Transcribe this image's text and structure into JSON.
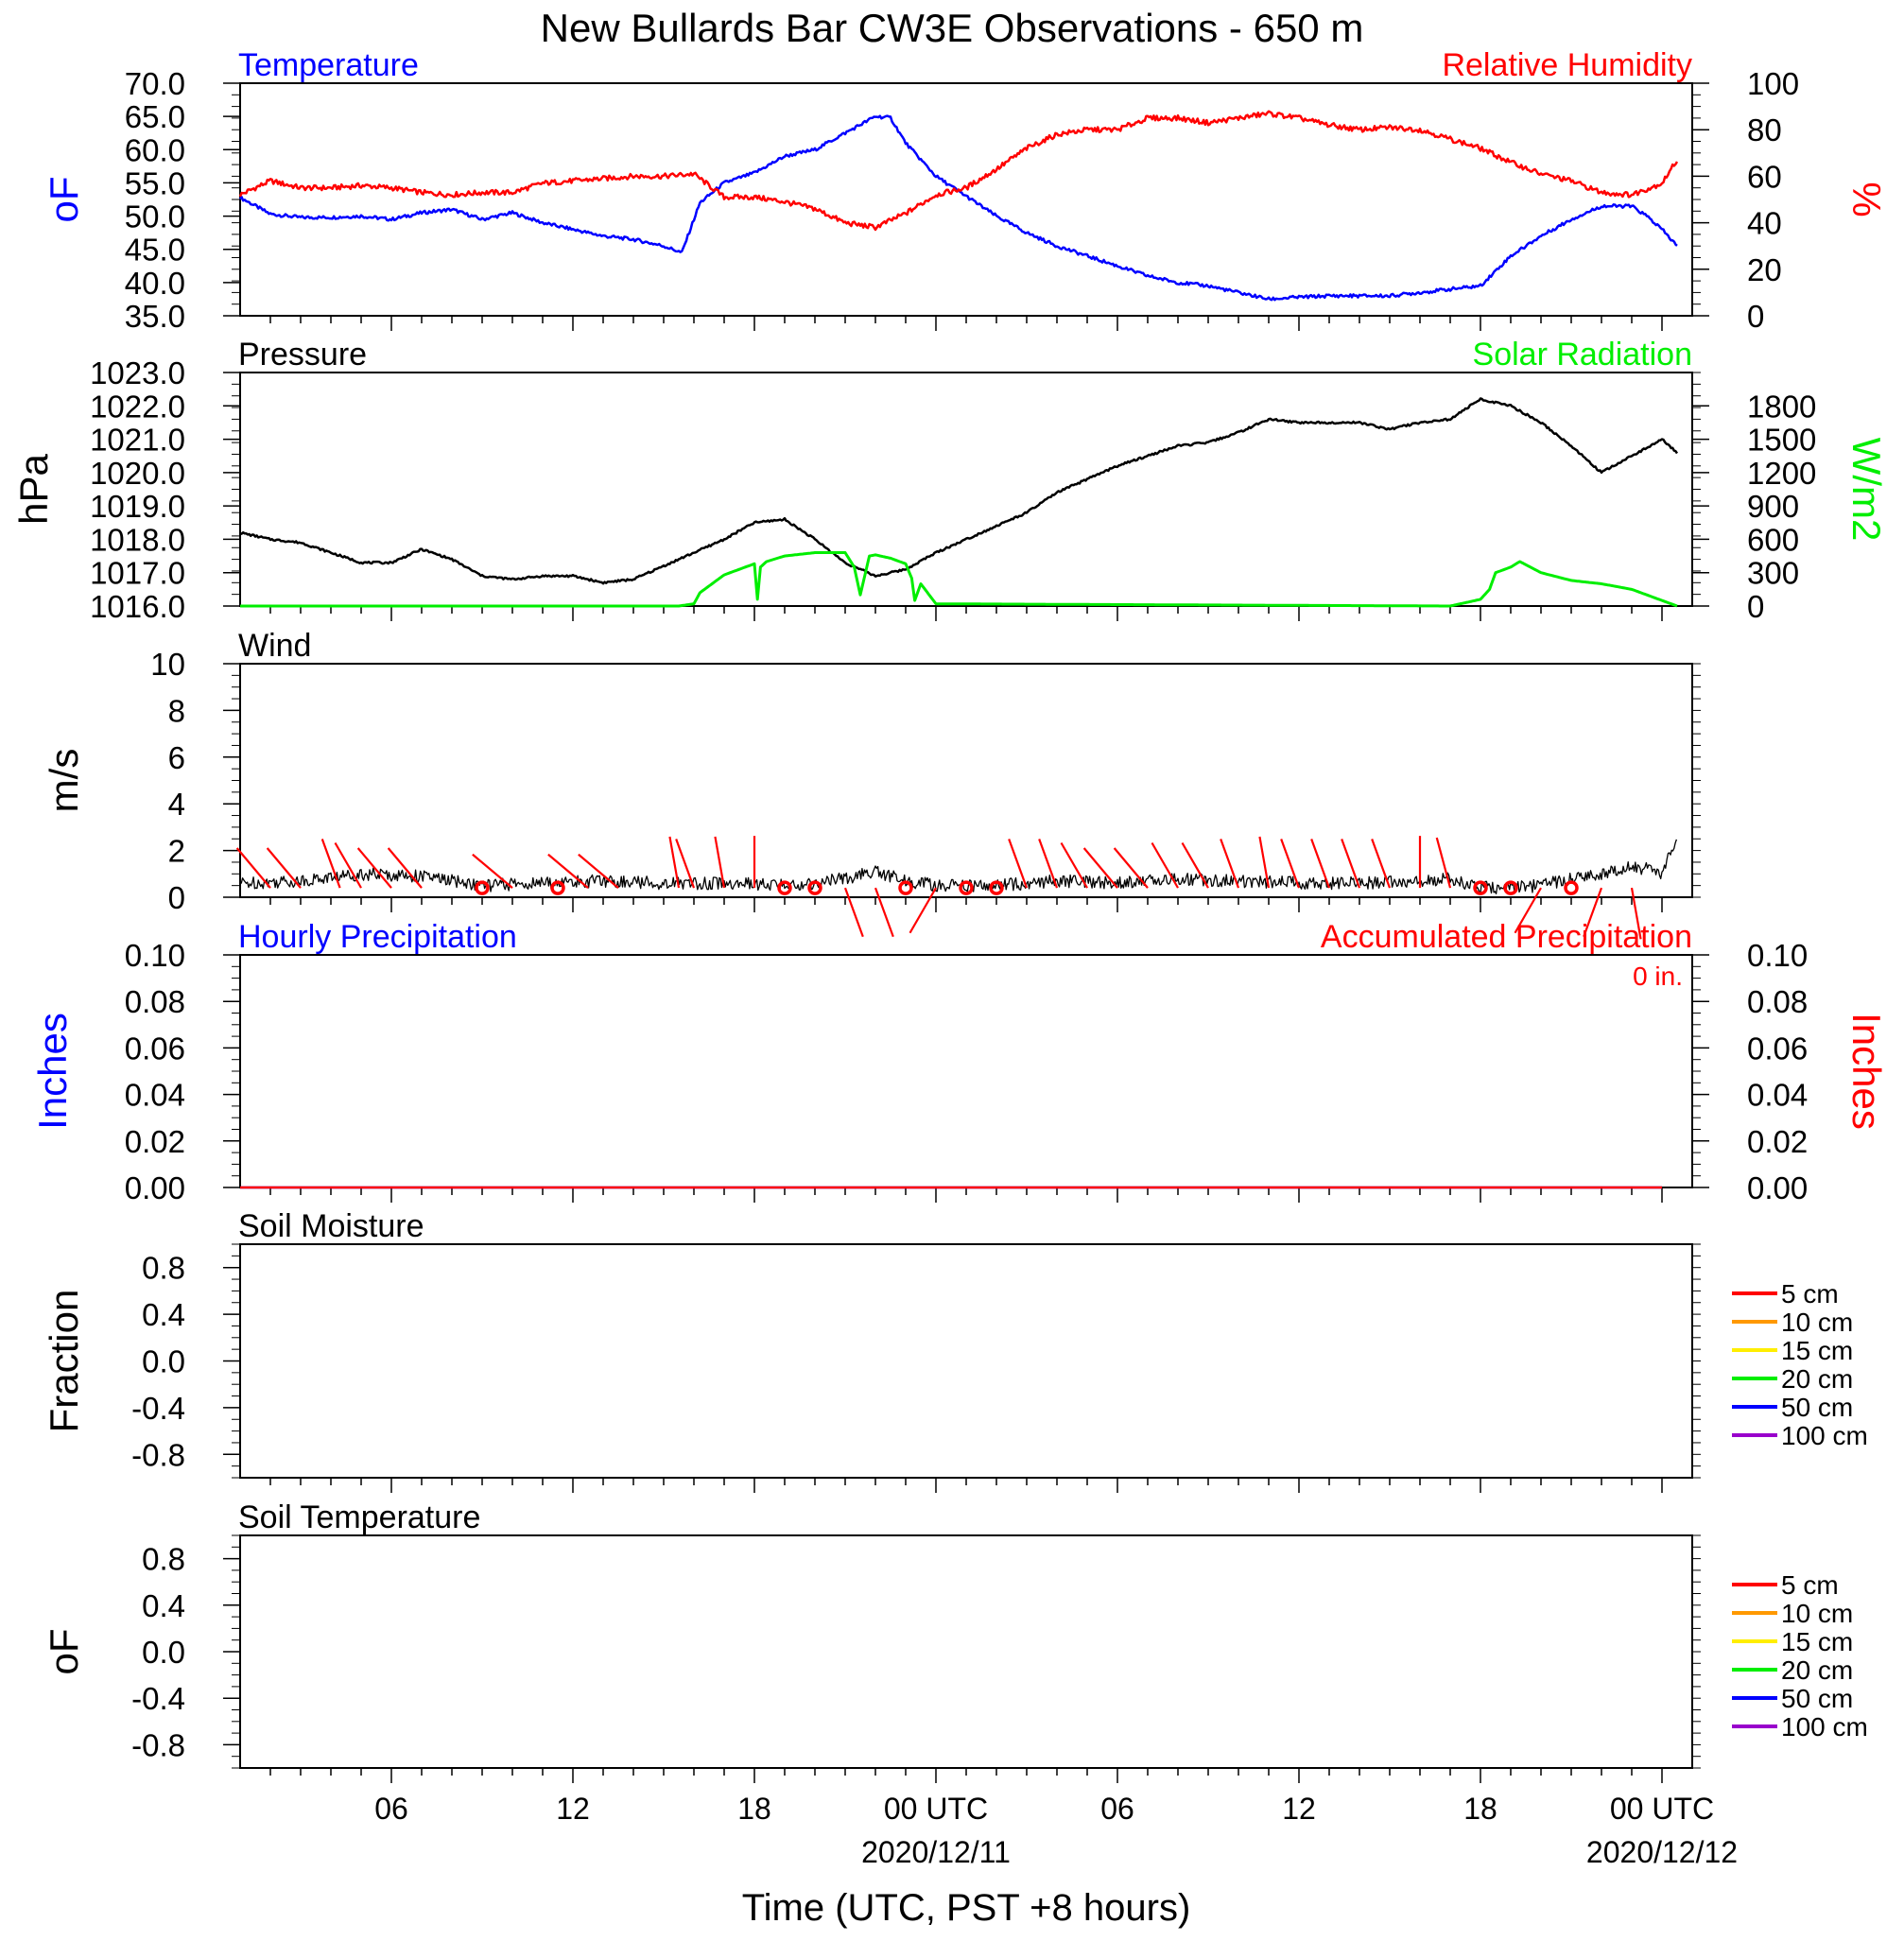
{
  "title": "New Bullards Bar CW3E Observations - 650 m",
  "xlabel": "Time (UTC, PST +8 hours)",
  "time_axis": {
    "ticks": [
      {
        "hour": 6,
        "label": "06",
        "date": ""
      },
      {
        "hour": 12,
        "label": "12",
        "date": ""
      },
      {
        "hour": 18,
        "label": "18",
        "date": ""
      },
      {
        "hour": 24,
        "label": "00 UTC",
        "date": "2020/12/11"
      },
      {
        "hour": 30,
        "label": "06",
        "date": ""
      },
      {
        "hour": 36,
        "label": "12",
        "date": ""
      },
      {
        "hour": 42,
        "label": "18",
        "date": ""
      },
      {
        "hour": 48,
        "label": "00 UTC",
        "date": "2020/12/12"
      }
    ],
    "xlim": [
      1,
      49
    ]
  },
  "colors": {
    "temperature": "#0000ff",
    "humidity": "#ff0000",
    "pressure": "#000000",
    "solar": "#00ee00",
    "wind": "#000000",
    "barbs": "#ff0000",
    "hourly_precip": "#0000ff",
    "accum_precip": "#ff0000"
  },
  "chart_data": [
    {
      "type": "line",
      "title_left": "Temperature",
      "title_right": "Relative Humidity",
      "ylabel_left": "oF",
      "ylabel_right": "%",
      "ylim_left": [
        35,
        70
      ],
      "ylim_right": [
        0,
        100
      ],
      "yticks_left": [
        "35.0",
        "40.0",
        "45.0",
        "50.0",
        "55.0",
        "60.0",
        "65.0",
        "70.0"
      ],
      "yticks_right": [
        "0",
        "20",
        "40",
        "60",
        "80",
        "100"
      ],
      "series": [
        {
          "name": "Temperature",
          "axis": "left",
          "x": [
            1,
            2,
            3,
            4,
            5,
            6,
            7,
            8,
            9,
            10,
            11,
            12,
            13,
            14,
            15,
            15.6,
            16.2,
            17,
            18,
            19,
            20,
            21,
            22,
            22.5,
            23,
            24,
            25,
            26,
            27,
            28,
            29,
            30,
            31,
            32,
            33,
            34,
            35,
            36,
            37,
            38,
            39,
            40,
            41,
            42,
            43,
            44,
            45,
            46,
            47,
            47.5,
            48,
            48.5
          ],
          "y": [
            52.8,
            50.3,
            49.8,
            49.8,
            50,
            49.5,
            50.5,
            51,
            49.5,
            50.5,
            49,
            48,
            47,
            46.5,
            45.5,
            44.5,
            52,
            55,
            56.5,
            59,
            60,
            62.5,
            65,
            64.8,
            61,
            56,
            53,
            50,
            47.5,
            45.5,
            44,
            42.5,
            41,
            40,
            39.5,
            38.5,
            37.5,
            37.8,
            38,
            38,
            38,
            38.5,
            39,
            39.5,
            44,
            47,
            49.5,
            51.5,
            51.5,
            50,
            48,
            45.5
          ]
        },
        {
          "name": "Relative Humidity",
          "axis": "right",
          "x": [
            1,
            2,
            3,
            4,
            5,
            6,
            7,
            8,
            9,
            10,
            11,
            12,
            13,
            14,
            15,
            16,
            17,
            18,
            19,
            20,
            21,
            22,
            23,
            24,
            25,
            26,
            27,
            28,
            29,
            30,
            31,
            32,
            33,
            34,
            35,
            36,
            37,
            38,
            39,
            40,
            41,
            42,
            43,
            44,
            45,
            46,
            47,
            48,
            48.5
          ],
          "y": [
            52,
            58,
            55,
            55,
            56,
            55,
            53,
            52,
            53,
            53,
            57,
            58,
            59,
            60,
            60,
            61,
            51,
            51,
            49,
            46,
            40,
            38,
            44,
            52,
            55,
            63,
            72,
            78,
            80,
            80,
            85,
            85,
            83,
            85,
            87,
            85,
            82,
            80,
            81,
            80,
            76,
            72,
            66,
            61,
            58,
            53,
            52,
            57,
            67
          ]
        }
      ]
    },
    {
      "type": "line",
      "title_left": "Pressure",
      "title_right": "Solar Radiation",
      "ylabel_left": "hPa",
      "ylabel_right": "W/m2",
      "ylim_left": [
        1016,
        1023
      ],
      "ylim_right": [
        0,
        2100
      ],
      "yticks_left": [
        "1016.0",
        "1017.0",
        "1018.0",
        "1019.0",
        "1020.0",
        "1021.0",
        "1022.0",
        "1023.0"
      ],
      "yticks_right": [
        "0",
        "300",
        "600",
        "900",
        "1200",
        "1500",
        "1800"
      ],
      "series": [
        {
          "name": "Pressure",
          "axis": "left",
          "x": [
            1,
            2,
            3,
            4,
            5,
            6,
            7,
            8,
            9,
            10,
            11,
            12,
            13,
            14,
            15,
            16,
            17,
            18,
            19,
            20,
            21,
            22,
            23,
            24,
            25,
            26,
            27,
            28,
            29,
            30,
            31,
            32,
            33,
            34,
            35,
            36,
            37,
            38,
            39,
            40,
            41,
            42,
            43,
            44,
            45,
            46,
            47,
            48,
            48.5
          ],
          "y": [
            1018.2,
            1018,
            1017.9,
            1017.6,
            1017.3,
            1017.3,
            1017.7,
            1017.4,
            1016.9,
            1016.8,
            1016.9,
            1016.9,
            1016.7,
            1016.8,
            1017.2,
            1017.6,
            1018.0,
            1018.5,
            1018.6,
            1018.0,
            1017.3,
            1016.9,
            1017.1,
            1017.6,
            1018.0,
            1018.4,
            1018.8,
            1019.4,
            1019.8,
            1020.2,
            1020.5,
            1020.8,
            1020.9,
            1021.2,
            1021.6,
            1021.5,
            1021.5,
            1021.5,
            1021.3,
            1021.5,
            1021.6,
            1022.2,
            1022.0,
            1021.5,
            1020.8,
            1020.0,
            1020.5,
            1021.0,
            1020.6
          ]
        },
        {
          "name": "Solar Radiation",
          "axis": "right",
          "x": [
            1,
            15.5,
            16,
            16.2,
            17,
            17.8,
            18,
            18.1,
            18.2,
            18.4,
            19,
            20,
            21,
            21.3,
            21.5,
            21.8,
            22,
            22.5,
            23,
            23.2,
            23.3,
            23.5,
            24,
            41,
            42,
            42.3,
            42.5,
            43,
            43.3,
            44,
            45,
            46,
            47,
            48,
            48.5
          ],
          "y": [
            0,
            0,
            20,
            120,
            280,
            360,
            380,
            60,
            350,
            400,
            450,
            480,
            480,
            350,
            100,
            450,
            460,
            430,
            380,
            250,
            50,
            200,
            20,
            0,
            60,
            150,
            300,
            350,
            400,
            300,
            230,
            200,
            150,
            50,
            0
          ]
        }
      ]
    },
    {
      "type": "line",
      "title_left": "Wind",
      "ylabel_left": "m/s",
      "ylim_left": [
        0,
        10
      ],
      "yticks_left": [
        "0",
        "2",
        "4",
        "6",
        "8",
        "10"
      ],
      "series": [
        {
          "name": "Wind",
          "axis": "left",
          "x": [
            1,
            3,
            5,
            7,
            9,
            11,
            13,
            15,
            17,
            19,
            20,
            21,
            22,
            23,
            24,
            26,
            28,
            30,
            32,
            34,
            36,
            38,
            40,
            41,
            42,
            43,
            44,
            45,
            46,
            47,
            47.5,
            48,
            48.5
          ],
          "y": [
            0.6,
            0.7,
            1.0,
            0.9,
            0.5,
            0.6,
            0.7,
            0.6,
            0.6,
            0.5,
            0.6,
            0.8,
            1.1,
            0.7,
            0.5,
            0.5,
            0.7,
            0.6,
            0.8,
            0.7,
            0.6,
            0.6,
            0.7,
            0.8,
            0.4,
            0.4,
            0.5,
            0.8,
            1.0,
            1.3,
            1.2,
            1.0,
            2.5
          ]
        }
      ],
      "barbs": {
        "x": [
          2,
          3,
          4.3,
          5,
          6,
          7,
          9,
          10,
          11.5,
          12.5,
          13.5,
          15.5,
          16,
          17,
          18,
          19,
          20,
          21,
          22,
          23,
          24,
          25,
          26,
          27,
          28,
          29,
          30,
          31,
          32,
          33,
          34,
          35,
          36,
          37,
          38,
          39,
          40,
          41,
          42,
          43,
          44,
          45,
          46,
          47
        ],
        "calm": [
          false,
          false,
          false,
          false,
          false,
          false,
          true,
          false,
          true,
          false,
          false,
          false,
          false,
          false,
          false,
          true,
          true,
          false,
          false,
          true,
          false,
          true,
          true,
          false,
          false,
          false,
          false,
          false,
          false,
          false,
          false,
          false,
          false,
          false,
          false,
          false,
          false,
          false,
          true,
          true,
          false,
          true,
          false,
          false
        ],
        "direction_deg": [
          320,
          320,
          340,
          330,
          320,
          320,
          0,
          310,
          0,
          310,
          310,
          350,
          340,
          350,
          0,
          0,
          0,
          160,
          160,
          0,
          210,
          0,
          0,
          340,
          340,
          330,
          320,
          320,
          330,
          330,
          340,
          350,
          340,
          340,
          340,
          340,
          0,
          345,
          0,
          0,
          210,
          0,
          200,
          170
        ]
      }
    },
    {
      "type": "line",
      "title_left": "Hourly Precipitation",
      "title_right": "Accumulated Precipitation",
      "annotation": "0 in.",
      "ylabel_left": "Inches",
      "ylabel_right": "Inches",
      "ylim_left": [
        0,
        0.1
      ],
      "ylim_right": [
        0,
        0.1
      ],
      "yticks_left": [
        "0.00",
        "0.02",
        "0.04",
        "0.06",
        "0.08",
        "0.10"
      ],
      "yticks_right": [
        "0.00",
        "0.02",
        "0.04",
        "0.06",
        "0.08",
        "0.10"
      ],
      "series": [
        {
          "name": "Hourly Precipitation",
          "axis": "left",
          "x": [
            1,
            48.5
          ],
          "y": [
            0,
            0
          ]
        },
        {
          "name": "Accumulated Precipitation",
          "axis": "right",
          "x": [
            1,
            48.5
          ],
          "y": [
            0,
            0
          ]
        }
      ]
    },
    {
      "type": "line",
      "title_left": "Soil Moisture",
      "ylabel_left": "Fraction",
      "ylim_left": [
        -1,
        1
      ],
      "yticks_left": [
        "-0.8",
        "-0.4",
        "0.0",
        "0.4",
        "0.8"
      ],
      "legend": [
        {
          "label": "5 cm",
          "color": "#ff0000"
        },
        {
          "label": "10 cm",
          "color": "#ff9900"
        },
        {
          "label": "15 cm",
          "color": "#ffee00"
        },
        {
          "label": "20 cm",
          "color": "#00ee00"
        },
        {
          "label": "50 cm",
          "color": "#0000ff"
        },
        {
          "label": "100 cm",
          "color": "#9900cc"
        }
      ],
      "series": []
    },
    {
      "type": "line",
      "title_left": "Soil Temperature",
      "ylabel_left": "oF",
      "ylim_left": [
        -1,
        1
      ],
      "yticks_left": [
        "-0.8",
        "-0.4",
        "0.0",
        "0.4",
        "0.8"
      ],
      "legend": [
        {
          "label": "5 cm",
          "color": "#ff0000"
        },
        {
          "label": "10 cm",
          "color": "#ff9900"
        },
        {
          "label": "15 cm",
          "color": "#ffee00"
        },
        {
          "label": "20 cm",
          "color": "#00ee00"
        },
        {
          "label": "50 cm",
          "color": "#0000ff"
        },
        {
          "label": "100 cm",
          "color": "#9900cc"
        }
      ],
      "series": []
    }
  ]
}
